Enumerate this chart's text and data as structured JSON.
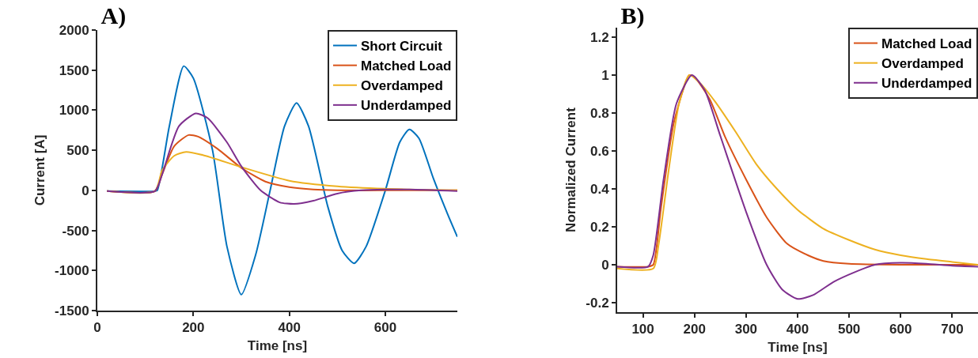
{
  "chart_data": [
    {
      "type": "line",
      "title": "A)",
      "xlabel": "Time [ns]",
      "ylabel": "Current [A]",
      "xlim": [
        0,
        750
      ],
      "ylim": [
        -1500,
        2000
      ],
      "xticks": [
        0,
        200,
        400,
        600
      ],
      "yticks": [
        -1500,
        -1000,
        -500,
        0,
        500,
        1000,
        1500,
        2000
      ],
      "legend": "top right",
      "series": [
        {
          "name": "Short Circuit",
          "color": "#0072bd",
          "x": [
            20,
            120,
            125,
            150,
            180,
            200,
            240,
            270,
            300,
            330,
            360,
            390,
            415,
            440,
            480,
            510,
            535,
            560,
            600,
            630,
            650,
            670,
            700,
            730,
            750
          ],
          "values": [
            -10,
            -10,
            0,
            800,
            1550,
            1400,
            500,
            -700,
            -1300,
            -800,
            0,
            800,
            1090,
            800,
            -200,
            -750,
            -910,
            -700,
            0,
            600,
            760,
            650,
            150,
            -300,
            -580
          ]
        },
        {
          "name": "Matched Load",
          "color": "#d95319",
          "x": [
            20,
            120,
            135,
            160,
            190,
            210,
            250,
            300,
            350,
            400,
            450,
            500,
            600,
            750
          ],
          "values": [
            -10,
            -10,
            200,
            550,
            690,
            670,
            520,
            280,
            110,
            40,
            10,
            0,
            0,
            0
          ]
        },
        {
          "name": "Overdamped",
          "color": "#edb120",
          "x": [
            20,
            120,
            135,
            160,
            185,
            220,
            300,
            400,
            500,
            600,
            750
          ],
          "values": [
            -10,
            -10,
            250,
            430,
            480,
            440,
            290,
            120,
            50,
            20,
            0
          ]
        },
        {
          "name": "Underdamped",
          "color": "#7e2f8e",
          "x": [
            20,
            120,
            135,
            170,
            205,
            230,
            270,
            300,
            340,
            380,
            410,
            450,
            500,
            550,
            600,
            650,
            750
          ],
          "values": [
            -10,
            -10,
            200,
            800,
            960,
            900,
            600,
            300,
            0,
            -150,
            -170,
            -130,
            -40,
            0,
            10,
            10,
            -10
          ]
        }
      ]
    },
    {
      "type": "line",
      "title": "B)",
      "xlabel": "Time [ns]",
      "ylabel": "Normalized Current",
      "xlim": [
        50,
        750
      ],
      "ylim": [
        -0.25,
        1.25
      ],
      "xticks": [
        100,
        200,
        300,
        400,
        500,
        600,
        700
      ],
      "yticks": [
        -0.2,
        0,
        0.2,
        0.4,
        0.6,
        0.8,
        1,
        1.2
      ],
      "legend": "top right",
      "series": [
        {
          "name": "Matched Load",
          "color": "#d95319",
          "x": [
            50,
            110,
            120,
            135,
            160,
            190,
            200,
            230,
            260,
            300,
            340,
            380,
            420,
            450,
            500,
            600,
            750
          ],
          "values": [
            -0.01,
            -0.01,
            0,
            0.3,
            0.75,
            1,
            0.99,
            0.87,
            0.67,
            0.45,
            0.25,
            0.11,
            0.05,
            0.02,
            0.005,
            0,
            0
          ]
        },
        {
          "name": "Overdamped",
          "color": "#edb120",
          "x": [
            50,
            120,
            130,
            150,
            170,
            190,
            210,
            240,
            280,
            320,
            360,
            400,
            450,
            500,
            550,
            600,
            650,
            700,
            750
          ],
          "values": [
            -0.02,
            -0.02,
            0.1,
            0.5,
            0.85,
            1,
            0.96,
            0.86,
            0.7,
            0.53,
            0.4,
            0.29,
            0.19,
            0.13,
            0.08,
            0.05,
            0.03,
            0.015,
            0
          ]
        },
        {
          "name": "Underdamped",
          "color": "#7e2f8e",
          "x": [
            50,
            110,
            120,
            140,
            165,
            195,
            220,
            250,
            300,
            340,
            370,
            400,
            430,
            470,
            510,
            550,
            600,
            650,
            700,
            750
          ],
          "values": [
            -0.01,
            -0.01,
            0.05,
            0.45,
            0.85,
            1,
            0.92,
            0.68,
            0.28,
            0,
            -0.13,
            -0.18,
            -0.16,
            -0.09,
            -0.04,
            0,
            0.01,
            0.005,
            -0.005,
            -0.01
          ]
        }
      ]
    }
  ]
}
